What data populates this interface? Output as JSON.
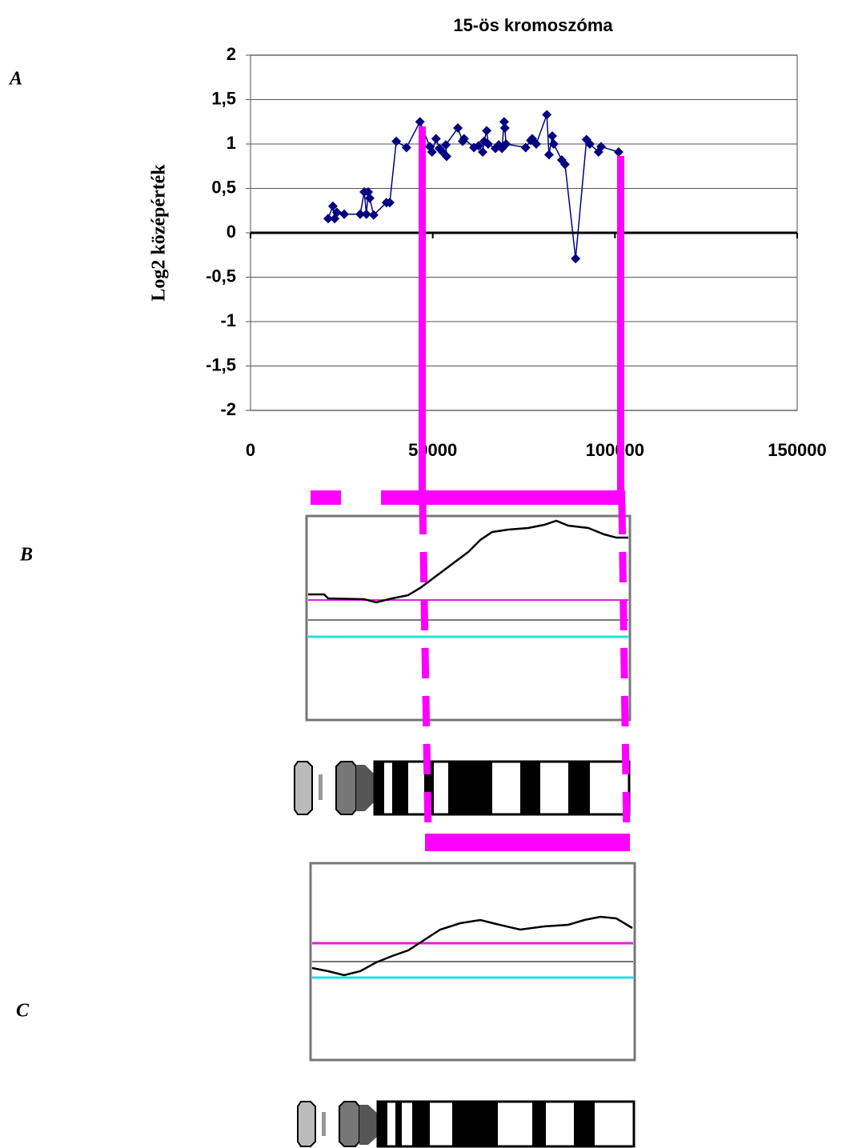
{
  "panel_labels": [
    "A",
    "B",
    "C"
  ],
  "chart_data": {
    "type": "line",
    "title": "15-ös kromoszóma",
    "y_label": "Log2 középérték",
    "x": [
      21300,
      22600,
      23100,
      23700,
      25700,
      30100,
      31200,
      31800,
      32300,
      32700,
      33800,
      37300,
      38200,
      40000,
      42800,
      46500,
      49200,
      49800,
      50900,
      51800,
      52700,
      53800,
      53600,
      56900,
      58200,
      58600,
      61300,
      62600,
      63700,
      64100,
      64800,
      65200,
      67200,
      68100,
      69000,
      69600,
      69800,
      70100,
      75500,
      76900,
      77300,
      78400,
      81300,
      81900,
      82800,
      83200,
      85400,
      86300,
      89200,
      92200,
      93100,
      95500,
      96200,
      101000
    ],
    "values": [
      0.16,
      0.3,
      0.16,
      0.23,
      0.21,
      0.21,
      0.46,
      0.21,
      0.46,
      0.39,
      0.2,
      0.34,
      0.34,
      1.03,
      0.96,
      1.25,
      0.97,
      0.91,
      1.06,
      0.95,
      0.91,
      0.86,
      0.99,
      1.18,
      1.03,
      1.06,
      0.96,
      0.98,
      0.91,
      1.03,
      1.15,
      1.0,
      0.95,
      0.99,
      0.95,
      1.25,
      1.18,
      1.0,
      0.96,
      1.04,
      1.06,
      1.0,
      1.33,
      0.88,
      1.09,
      1.0,
      0.82,
      0.77,
      -0.29,
      1.05,
      1.0,
      0.91,
      0.97,
      0.91
    ],
    "color": "#000080",
    "xlim": [
      0,
      150000
    ],
    "xticks": [
      0,
      50000,
      100000,
      150000
    ],
    "ylim": [
      -2,
      2
    ],
    "yticks": [
      -2,
      {
        "value": -1.5,
        "label": "-1,5"
      },
      -1,
      {
        "value": -0.5,
        "label": "-0,5"
      },
      0,
      {
        "value": 0.5,
        "label": "0,5"
      },
      1,
      {
        "value": 1.5,
        "label": "1,5"
      },
      2
    ],
    "grid": true
  }
}
